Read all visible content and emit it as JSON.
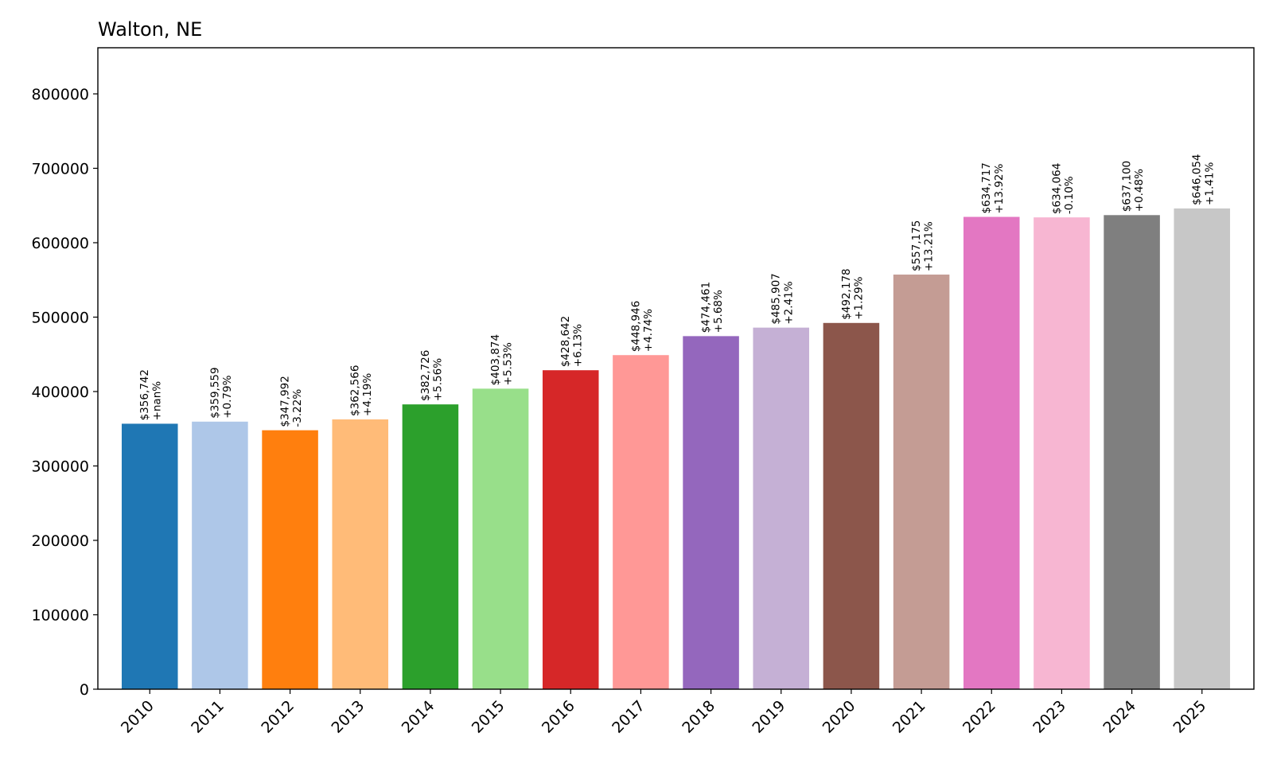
{
  "chart_data": {
    "type": "bar",
    "title": "Walton, NE",
    "xlabel": "",
    "ylabel": "",
    "ylim": [
      0,
      862000
    ],
    "yticks": [
      0,
      100000,
      200000,
      300000,
      400000,
      500000,
      600000,
      700000,
      800000
    ],
    "ytick_labels": [
      "0",
      "100000",
      "200000",
      "300000",
      "400000",
      "500000",
      "600000",
      "700000",
      "800000"
    ],
    "grid": false,
    "categories": [
      "2010",
      "2011",
      "2012",
      "2013",
      "2014",
      "2015",
      "2016",
      "2017",
      "2018",
      "2019",
      "2020",
      "2021",
      "2022",
      "2023",
      "2024",
      "2025"
    ],
    "values": [
      356742,
      359559,
      347992,
      362566,
      382726,
      403874,
      428642,
      448946,
      474461,
      485907,
      492178,
      557175,
      634717,
      634064,
      637100,
      646054
    ],
    "value_labels": [
      "$356,742",
      "$359,559",
      "$347,992",
      "$362,566",
      "$382,726",
      "$403,874",
      "$428,642",
      "$448,946",
      "$474,461",
      "$485,907",
      "$492,178",
      "$557,175",
      "$634,717",
      "$634,064",
      "$637,100",
      "$646,054"
    ],
    "change_labels": [
      "+nan%",
      "+0.79%",
      "-3.22%",
      "+4.19%",
      "+5.56%",
      "+5.53%",
      "+6.13%",
      "+4.74%",
      "+5.68%",
      "+2.41%",
      "+1.29%",
      "+13.21%",
      "+13.92%",
      "-0.10%",
      "+0.48%",
      "+1.41%"
    ],
    "colors": [
      "#1f77b4",
      "#aec7e8",
      "#ff7f0e",
      "#ffbb78",
      "#2ca02c",
      "#98df8a",
      "#d62728",
      "#ff9896",
      "#9467bd",
      "#c5b0d5",
      "#8c564b",
      "#c49c94",
      "#e377c2",
      "#f7b6d2",
      "#7f7f7f",
      "#c7c7c7"
    ]
  }
}
